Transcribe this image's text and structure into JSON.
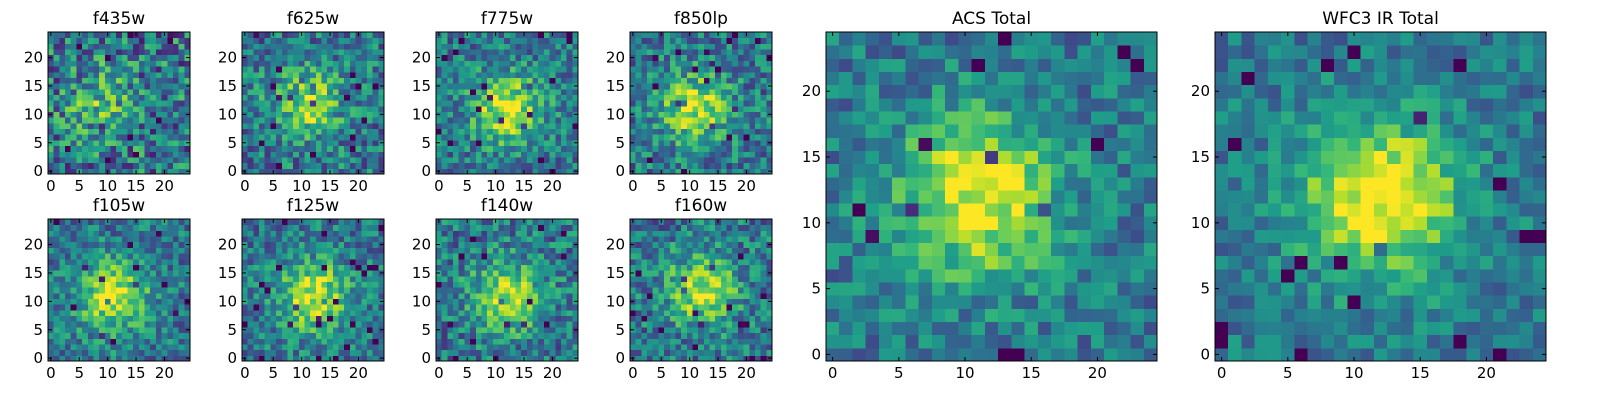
{
  "chart_data": [
    {
      "type": "heatmap",
      "title": "f435w",
      "xticks": [
        0,
        5,
        10,
        15,
        20
      ],
      "yticks": [
        0,
        5,
        10,
        15,
        20
      ],
      "xlim": [
        -0.5,
        24.5
      ],
      "ylim": [
        -0.5,
        24.5
      ],
      "grid_size": 25,
      "colormap": "viridis",
      "peak": {
        "x": 9,
        "y": 12
      },
      "peak_strength": 0.25,
      "noise": 0.55,
      "seed": 11
    },
    {
      "type": "heatmap",
      "title": "f625w",
      "xticks": [
        0,
        5,
        10,
        15,
        20
      ],
      "yticks": [
        0,
        5,
        10,
        15,
        20
      ],
      "xlim": [
        -0.5,
        24.5
      ],
      "ylim": [
        -0.5,
        24.5
      ],
      "grid_size": 25,
      "colormap": "viridis",
      "peak": {
        "x": 11,
        "y": 12
      },
      "peak_strength": 0.45,
      "noise": 0.45,
      "seed": 23
    },
    {
      "type": "heatmap",
      "title": "f775w",
      "xticks": [
        0,
        5,
        10,
        15,
        20
      ],
      "yticks": [
        0,
        5,
        10,
        15,
        20
      ],
      "xlim": [
        -0.5,
        24.5
      ],
      "ylim": [
        -0.5,
        24.5
      ],
      "grid_size": 25,
      "colormap": "viridis",
      "peak": {
        "x": 12,
        "y": 11
      },
      "peak_strength": 0.55,
      "noise": 0.4,
      "seed": 37
    },
    {
      "type": "heatmap",
      "title": "f850lp",
      "xticks": [
        0,
        5,
        10,
        15,
        20
      ],
      "yticks": [
        0,
        5,
        10,
        15,
        20
      ],
      "xlim": [
        -0.5,
        24.5
      ],
      "ylim": [
        -0.5,
        24.5
      ],
      "grid_size": 25,
      "colormap": "viridis",
      "peak": {
        "x": 11,
        "y": 11
      },
      "peak_strength": 0.5,
      "noise": 0.42,
      "seed": 41
    },
    {
      "type": "heatmap",
      "title": "f105w",
      "xticks": [
        0,
        5,
        10,
        15,
        20
      ],
      "yticks": [
        0,
        5,
        10,
        15,
        20
      ],
      "xlim": [
        -0.5,
        24.5
      ],
      "ylim": [
        -0.5,
        24.5
      ],
      "grid_size": 25,
      "colormap": "viridis",
      "peak": {
        "x": 11,
        "y": 11
      },
      "peak_strength": 0.55,
      "noise": 0.38,
      "seed": 53
    },
    {
      "type": "heatmap",
      "title": "f125w",
      "xticks": [
        0,
        5,
        10,
        15,
        20
      ],
      "yticks": [
        0,
        5,
        10,
        15,
        20
      ],
      "xlim": [
        -0.5,
        24.5
      ],
      "ylim": [
        -0.5,
        24.5
      ],
      "grid_size": 25,
      "colormap": "viridis",
      "peak": {
        "x": 12,
        "y": 11
      },
      "peak_strength": 0.55,
      "noise": 0.38,
      "seed": 67
    },
    {
      "type": "heatmap",
      "title": "f140w",
      "xticks": [
        0,
        5,
        10,
        15,
        20
      ],
      "yticks": [
        0,
        5,
        10,
        15,
        20
      ],
      "xlim": [
        -0.5,
        24.5
      ],
      "ylim": [
        -0.5,
        24.5
      ],
      "grid_size": 25,
      "colormap": "viridis",
      "peak": {
        "x": 12,
        "y": 11
      },
      "peak_strength": 0.5,
      "noise": 0.42,
      "seed": 79
    },
    {
      "type": "heatmap",
      "title": "f160w",
      "xticks": [
        0,
        5,
        10,
        15,
        20
      ],
      "yticks": [
        0,
        5,
        10,
        15,
        20
      ],
      "xlim": [
        -0.5,
        24.5
      ],
      "ylim": [
        -0.5,
        24.5
      ],
      "grid_size": 25,
      "colormap": "viridis",
      "peak": {
        "x": 12,
        "y": 12
      },
      "peak_strength": 0.5,
      "noise": 0.42,
      "seed": 83
    },
    {
      "type": "heatmap",
      "title": "ACS Total",
      "xticks": [
        0,
        5,
        10,
        15,
        20
      ],
      "yticks": [
        0,
        5,
        10,
        15,
        20
      ],
      "xlim": [
        -0.5,
        24.5
      ],
      "ylim": [
        -0.5,
        24.5
      ],
      "grid_size": 25,
      "colormap": "viridis",
      "peak": {
        "x": 11,
        "y": 12
      },
      "peak_strength": 0.6,
      "noise": 0.32,
      "seed": 97
    },
    {
      "type": "heatmap",
      "title": "WFC3 IR Total",
      "xticks": [
        0,
        5,
        10,
        15,
        20
      ],
      "yticks": [
        0,
        5,
        10,
        15,
        20
      ],
      "xlim": [
        -0.5,
        24.5
      ],
      "ylim": [
        -0.5,
        24.5
      ],
      "grid_size": 25,
      "colormap": "viridis",
      "peak": {
        "x": 12,
        "y": 12
      },
      "peak_strength": 0.65,
      "noise": 0.28,
      "seed": 101
    }
  ]
}
